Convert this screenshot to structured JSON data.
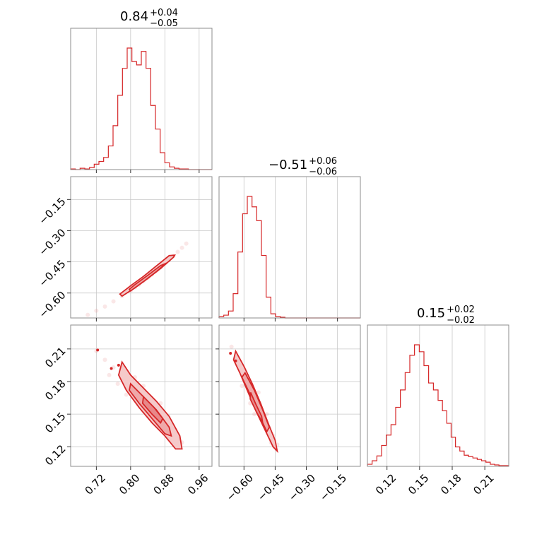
{
  "figure": {
    "series_color": "#d62728",
    "parameters": [
      {
        "index": 0,
        "median": 0.84,
        "plus": 0.04,
        "minus": 0.05,
        "title_main": "0.84",
        "title_plus": "+0.04",
        "title_minus": "−0.05",
        "range": [
          0.66,
          0.99
        ],
        "ticks": [
          0.72,
          0.8,
          0.88,
          0.96
        ],
        "tick_labels": [
          "0.72",
          "0.80",
          "0.88",
          "0.96"
        ]
      },
      {
        "index": 1,
        "median": -0.51,
        "plus": 0.06,
        "minus": 0.06,
        "title_main": "−0.51",
        "title_plus": "+0.06",
        "title_minus": "−0.06",
        "range": [
          -0.72,
          -0.04
        ],
        "ticks": [
          -0.6,
          -0.45,
          -0.3,
          -0.15
        ],
        "tick_labels": [
          "−0.60",
          "−0.45",
          "−0.30",
          "−0.15"
        ]
      },
      {
        "index": 2,
        "median": 0.15,
        "plus": 0.02,
        "minus": 0.02,
        "title_main": "0.15",
        "title_plus": "+0.02",
        "title_minus": "−0.02",
        "range": [
          0.102,
          0.232
        ],
        "ticks": [
          0.12,
          0.15,
          0.18,
          0.21
        ],
        "tick_labels": [
          "0.12",
          "0.15",
          "0.18",
          "0.21"
        ]
      }
    ]
  },
  "chart_data": {
    "type": "corner",
    "grid": true,
    "histograms": [
      {
        "param": 0,
        "edges": [
          0.66,
          0.671,
          0.682,
          0.693,
          0.704,
          0.715,
          0.726,
          0.737,
          0.748,
          0.759,
          0.77,
          0.781,
          0.792,
          0.803,
          0.814,
          0.825,
          0.836,
          0.847,
          0.858,
          0.869,
          0.88,
          0.891,
          0.902,
          0.913,
          0.924,
          0.935,
          0.946,
          0.957,
          0.968,
          0.979,
          0.99
        ],
        "counts": [
          1,
          0,
          2,
          1,
          3,
          8,
          12,
          18,
          35,
          65,
          110,
          150,
          180,
          160,
          155,
          175,
          150,
          95,
          60,
          25,
          10,
          4,
          2,
          1,
          1,
          0,
          0,
          0,
          0,
          0
        ]
      },
      {
        "param": 1,
        "edges": [
          -0.72,
          -0.6973,
          -0.6747,
          -0.652,
          -0.6293,
          -0.6067,
          -0.584,
          -0.5613,
          -0.5387,
          -0.516,
          -0.4933,
          -0.4707,
          -0.448,
          -0.4253,
          -0.4027,
          -0.38,
          -0.3573,
          -0.3347,
          -0.312,
          -0.2893,
          -0.2667,
          -0.244,
          -0.2213,
          -0.1987,
          -0.176,
          -0.1533,
          -0.1307,
          -0.108,
          -0.0853,
          -0.0627,
          -0.04
        ],
        "counts": [
          2,
          4,
          10,
          35,
          95,
          150,
          175,
          160,
          140,
          90,
          30,
          6,
          2,
          1,
          0,
          0,
          0,
          0,
          0,
          0,
          0,
          0,
          0,
          0,
          0,
          0,
          0,
          0,
          0,
          0
        ]
      },
      {
        "param": 2,
        "edges": [
          0.102,
          0.1063,
          0.1107,
          0.115,
          0.1193,
          0.1237,
          0.128,
          0.1323,
          0.1367,
          0.141,
          0.1453,
          0.1497,
          0.154,
          0.1583,
          0.1627,
          0.167,
          0.171,
          0.175,
          0.179,
          0.183,
          0.187,
          0.191,
          0.195,
          0.199,
          0.203,
          0.207,
          0.211,
          0.215,
          0.219,
          0.223,
          0.2275,
          0.232
        ],
        "counts": [
          3,
          8,
          15,
          30,
          45,
          60,
          85,
          110,
          135,
          160,
          175,
          165,
          145,
          120,
          110,
          95,
          80,
          62,
          42,
          28,
          22,
          16,
          14,
          12,
          10,
          8,
          6,
          3,
          2,
          1,
          1
        ]
      }
    ],
    "pairs": [
      {
        "x": 0,
        "y": 1,
        "points": [
          [
            0.7,
            -0.705
          ],
          [
            0.72,
            -0.685
          ],
          [
            0.74,
            -0.665
          ],
          [
            0.76,
            -0.64
          ],
          [
            0.78,
            -0.615
          ],
          [
            0.8,
            -0.588
          ],
          [
            0.81,
            -0.573
          ],
          [
            0.82,
            -0.56
          ],
          [
            0.83,
            -0.543
          ],
          [
            0.84,
            -0.527
          ],
          [
            0.85,
            -0.511
          ],
          [
            0.86,
            -0.494
          ],
          [
            0.87,
            -0.476
          ],
          [
            0.88,
            -0.458
          ],
          [
            0.89,
            -0.44
          ],
          [
            0.9,
            -0.421
          ],
          [
            0.91,
            -0.402
          ],
          [
            0.92,
            -0.382
          ],
          [
            0.93,
            -0.362
          ]
        ],
        "contours": [
          [
            [
              0.78,
              -0.615
            ],
            [
              0.81,
              -0.575
            ],
            [
              0.84,
              -0.53
            ],
            [
              0.87,
              -0.482
            ],
            [
              0.9,
              -0.428
            ],
            [
              0.903,
              -0.418
            ],
            [
              0.89,
              -0.42
            ],
            [
              0.86,
              -0.47
            ],
            [
              0.83,
              -0.52
            ],
            [
              0.8,
              -0.565
            ],
            [
              0.775,
              -0.605
            ]
          ],
          [
            [
              0.8,
              -0.59
            ],
            [
              0.83,
              -0.545
            ],
            [
              0.86,
              -0.497
            ],
            [
              0.88,
              -0.462
            ],
            [
              0.885,
              -0.455
            ],
            [
              0.87,
              -0.468
            ],
            [
              0.84,
              -0.515
            ],
            [
              0.81,
              -0.56
            ],
            [
              0.797,
              -0.582
            ]
          ]
        ]
      },
      {
        "x": 0,
        "y": 2,
        "points": [
          [
            0.72,
            0.208
          ],
          [
            0.74,
            0.2
          ],
          [
            0.76,
            0.193
          ],
          [
            0.78,
            0.186
          ],
          [
            0.8,
            0.178
          ],
          [
            0.82,
            0.17
          ],
          [
            0.84,
            0.162
          ],
          [
            0.86,
            0.154
          ],
          [
            0.88,
            0.145
          ],
          [
            0.9,
            0.134
          ],
          [
            0.92,
            0.124
          ],
          [
            0.79,
            0.168
          ],
          [
            0.83,
            0.176
          ],
          [
            0.85,
            0.15
          ],
          [
            0.87,
            0.16
          ],
          [
            0.89,
            0.138
          ],
          [
            0.81,
            0.184
          ],
          [
            0.77,
            0.178
          ],
          [
            0.91,
            0.128
          ],
          [
            0.75,
            0.186
          ]
        ],
        "contours": [
          [
            [
              0.78,
              0.198
            ],
            [
              0.8,
              0.186
            ],
            [
              0.83,
              0.174
            ],
            [
              0.86,
              0.162
            ],
            [
              0.89,
              0.148
            ],
            [
              0.915,
              0.13
            ],
            [
              0.92,
              0.118
            ],
            [
              0.905,
              0.118
            ],
            [
              0.88,
              0.13
            ],
            [
              0.85,
              0.142
            ],
            [
              0.82,
              0.156
            ],
            [
              0.79,
              0.172
            ],
            [
              0.772,
              0.186
            ]
          ],
          [
            [
              0.8,
              0.178
            ],
            [
              0.83,
              0.166
            ],
            [
              0.86,
              0.154
            ],
            [
              0.89,
              0.138
            ],
            [
              0.895,
              0.13
            ],
            [
              0.88,
              0.132
            ],
            [
              0.85,
              0.146
            ],
            [
              0.82,
              0.16
            ],
            [
              0.797,
              0.172
            ]
          ],
          [
            [
              0.83,
              0.166
            ],
            [
              0.855,
              0.156
            ],
            [
              0.875,
              0.146
            ],
            [
              0.87,
              0.142
            ],
            [
              0.85,
              0.15
            ],
            [
              0.828,
              0.16
            ]
          ]
        ],
        "outliers": [
          [
            0.723,
            0.209
          ],
          [
            0.755,
            0.192
          ],
          [
            0.772,
            0.195
          ]
        ]
      },
      {
        "x": 1,
        "y": 2,
        "points": [
          [
            -0.66,
            0.212
          ],
          [
            -0.64,
            0.202
          ],
          [
            -0.62,
            0.192
          ],
          [
            -0.6,
            0.184
          ],
          [
            -0.58,
            0.176
          ],
          [
            -0.56,
            0.168
          ],
          [
            -0.54,
            0.16
          ],
          [
            -0.52,
            0.152
          ],
          [
            -0.5,
            0.146
          ],
          [
            -0.48,
            0.138
          ],
          [
            -0.46,
            0.13
          ],
          [
            -0.44,
            0.122
          ],
          [
            -0.57,
            0.16
          ],
          [
            -0.53,
            0.17
          ],
          [
            -0.49,
            0.15
          ],
          [
            -0.61,
            0.176
          ],
          [
            -0.47,
            0.124
          ],
          [
            -0.55,
            0.15
          ]
        ],
        "contours": [
          [
            [
              -0.65,
              0.2
            ],
            [
              -0.62,
              0.188
            ],
            [
              -0.58,
              0.17
            ],
            [
              -0.54,
              0.152
            ],
            [
              -0.5,
              0.136
            ],
            [
              -0.46,
              0.12
            ],
            [
              -0.44,
              0.116
            ],
            [
              -0.45,
              0.126
            ],
            [
              -0.48,
              0.14
            ],
            [
              -0.52,
              0.16
            ],
            [
              -0.56,
              0.178
            ],
            [
              -0.6,
              0.194
            ],
            [
              -0.64,
              0.208
            ]
          ],
          [
            [
              -0.61,
              0.184
            ],
            [
              -0.57,
              0.168
            ],
            [
              -0.53,
              0.15
            ],
            [
              -0.49,
              0.134
            ],
            [
              -0.478,
              0.138
            ],
            [
              -0.51,
              0.154
            ],
            [
              -0.55,
              0.172
            ],
            [
              -0.595,
              0.188
            ]
          ],
          [
            [
              -0.57,
              0.164
            ],
            [
              -0.54,
              0.152
            ],
            [
              -0.51,
              0.142
            ],
            [
              -0.515,
              0.148
            ],
            [
              -0.545,
              0.16
            ],
            [
              -0.568,
              0.17
            ]
          ]
        ],
        "outliers": [
          [
            -0.665,
            0.206
          ],
          [
            -0.64,
            0.199
          ]
        ]
      }
    ]
  }
}
